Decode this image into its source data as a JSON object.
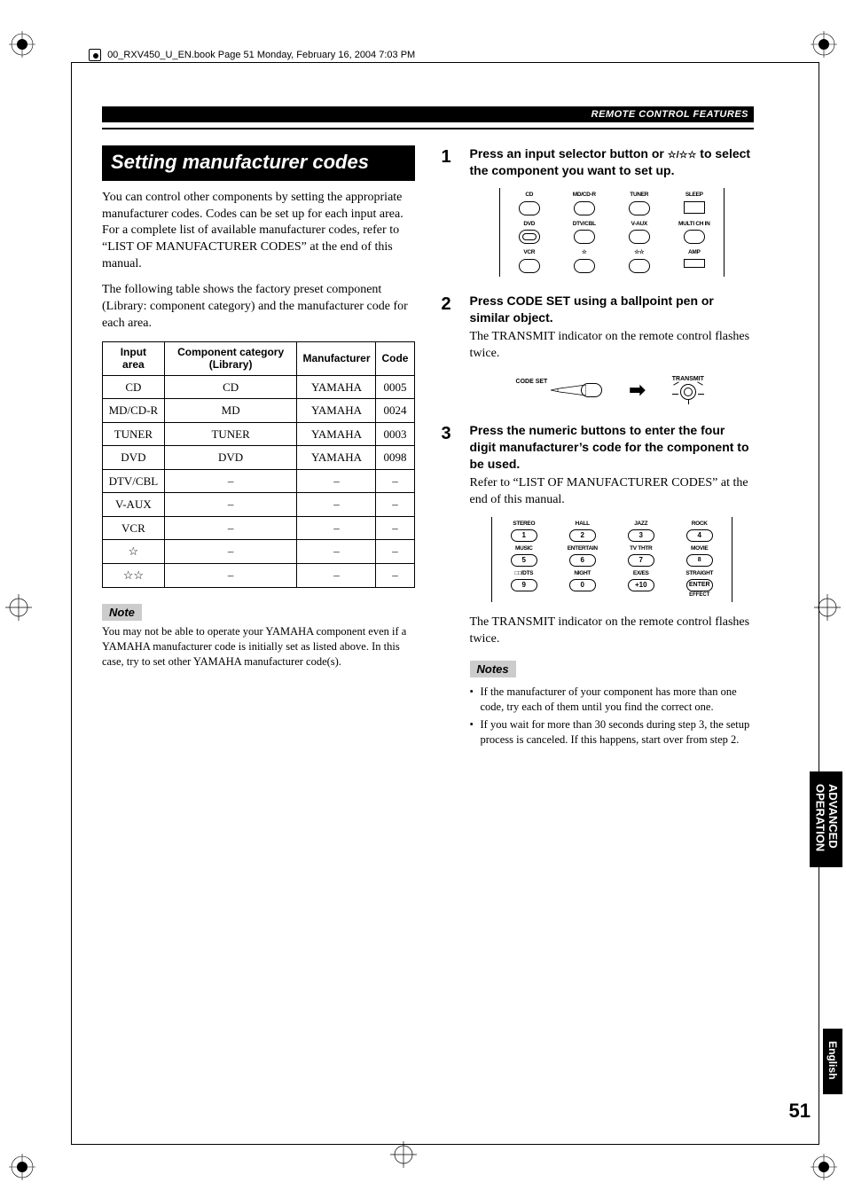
{
  "header_text": "00_RXV450_U_EN.book  Page 51  Monday, February 16, 2004  7:03 PM",
  "section_bar": "REMOTE CONTROL FEATURES",
  "section_title": "Setting manufacturer codes",
  "intro_p1": "You can control other components by setting the appropriate manufacturer codes. Codes can be set up for each input area. For a complete list of available manufacturer codes, refer to “LIST OF MANUFACTURER CODES” at the end of this manual.",
  "intro_p2": "The following table shows the factory preset component (Library: component category) and the manufacturer code for each area.",
  "table": {
    "headers": [
      "Input area",
      "Component category (Library)",
      "Manufacturer",
      "Code"
    ],
    "rows": [
      [
        "CD",
        "CD",
        "YAMAHA",
        "0005"
      ],
      [
        "MD/CD-R",
        "MD",
        "YAMAHA",
        "0024"
      ],
      [
        "TUNER",
        "TUNER",
        "YAMAHA",
        "0003"
      ],
      [
        "DVD",
        "DVD",
        "YAMAHA",
        "0098"
      ],
      [
        "DTV/CBL",
        "–",
        "–",
        "–"
      ],
      [
        "V-AUX",
        "–",
        "–",
        "–"
      ],
      [
        "VCR",
        "–",
        "–",
        "–"
      ],
      [
        "☆",
        "–",
        "–",
        "–"
      ],
      [
        "☆☆",
        "–",
        "–",
        "–"
      ]
    ]
  },
  "note_label": "Note",
  "note_text": "You may not be able to operate your YAMAHA component even if a YAMAHA manufacturer code is initially set as listed above. In this case, try to set other YAMAHA manufacturer code(s).",
  "steps": [
    {
      "num": "1",
      "head_a": "Press an input selector button or ",
      "head_b": " to select the component you want to set up.",
      "stars": "☆/☆☆"
    },
    {
      "num": "2",
      "head": "Press CODE SET using a ballpoint pen or similar object.",
      "text": "The TRANSMIT indicator on the remote control flashes twice."
    },
    {
      "num": "3",
      "head": "Press the numeric buttons to enter the four digit manufacturer’s code for the component to be used.",
      "text": "Refer to “LIST OF MANUFACTURER CODES” at the end of this manual."
    }
  ],
  "selector_labels": [
    [
      "CD",
      "MD/CD-R",
      "TUNER",
      "SLEEP"
    ],
    [
      "DVD",
      "DTV/CBL",
      "V-AUX",
      "MULTI CH IN"
    ],
    [
      "VCR",
      "☆",
      "☆☆",
      "AMP"
    ]
  ],
  "codeset_label": "CODE SET",
  "transmit_label": "TRANSMIT",
  "numpad": [
    [
      {
        "l": "STEREO",
        "n": "1"
      },
      {
        "l": "HALL",
        "n": "2"
      },
      {
        "l": "JAZZ",
        "n": "3"
      },
      {
        "l": "ROCK",
        "n": "4"
      }
    ],
    [
      {
        "l": "MUSIC",
        "n": "5"
      },
      {
        "l": "ENTERTAIN",
        "n": "6"
      },
      {
        "l": "TV THTR",
        "n": "7"
      },
      {
        "l": "MOVIE",
        "n": "8"
      }
    ],
    [
      {
        "l": "□□/DTS",
        "n": "9"
      },
      {
        "l": "NIGHT",
        "n": "0"
      },
      {
        "l": "EX/ES",
        "n": "+10"
      },
      {
        "l": "STRAIGHT",
        "n": "ENTER",
        "below": "EFFECT"
      }
    ]
  ],
  "post_numpad": "The TRANSMIT indicator on the remote control flashes twice.",
  "notes_label": "Notes",
  "notes_list": [
    "If the manufacturer of your component has more than one code, try each of them until you find the correct one.",
    "If you wait for more than 30 seconds during step 3, the setup process is canceled. If this happens, start over from step 2."
  ],
  "side_adv_1": "ADVANCED",
  "side_adv_2": "OPERATION",
  "side_eng": "English",
  "page_number": "51"
}
